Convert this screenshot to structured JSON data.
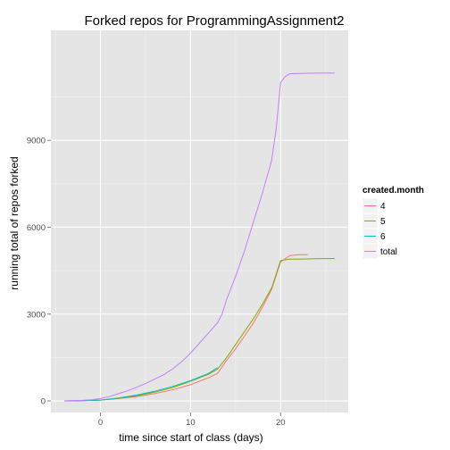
{
  "chart_data": {
    "type": "line",
    "title": "Forked repos for ProgrammingAssignment2",
    "xlabel": "time since start of class (days)",
    "ylabel": "running total of repos forked",
    "xlim": [
      -5.5,
      27.5
    ],
    "ylim": [
      -400,
      12800
    ],
    "x_ticks": [
      0,
      10,
      20
    ],
    "y_ticks": [
      0,
      3000,
      6000,
      9000
    ],
    "grid": true,
    "legend": {
      "title": "created.month",
      "placement": "right"
    },
    "series": [
      {
        "name": "4",
        "color": "#F8766D",
        "points": [
          [
            -4,
            0
          ],
          [
            -2,
            10
          ],
          [
            0,
            30
          ],
          [
            2,
            80
          ],
          [
            4,
            150
          ],
          [
            6,
            250
          ],
          [
            8,
            380
          ],
          [
            10,
            560
          ],
          [
            12,
            800
          ],
          [
            13,
            950
          ],
          [
            14,
            1400
          ],
          [
            15,
            1800
          ],
          [
            16,
            2250
          ],
          [
            17,
            2700
          ],
          [
            18,
            3250
          ],
          [
            19,
            3850
          ],
          [
            20,
            4800
          ],
          [
            21,
            5020
          ],
          [
            22,
            5050
          ],
          [
            23,
            5050
          ]
        ]
      },
      {
        "name": "5",
        "color": "#7CAE00",
        "points": [
          [
            -4,
            0
          ],
          [
            -2,
            10
          ],
          [
            0,
            30
          ],
          [
            2,
            90
          ],
          [
            4,
            180
          ],
          [
            6,
            300
          ],
          [
            8,
            460
          ],
          [
            10,
            680
          ],
          [
            12,
            920
          ],
          [
            13,
            1100
          ],
          [
            14,
            1500
          ],
          [
            15,
            1950
          ],
          [
            16,
            2400
          ],
          [
            17,
            2850
          ],
          [
            18,
            3350
          ],
          [
            19,
            3900
          ],
          [
            20,
            4850
          ],
          [
            21,
            4900
          ],
          [
            22,
            4900
          ],
          [
            24,
            4910
          ],
          [
            26,
            4920
          ]
        ]
      },
      {
        "name": "6",
        "color": "#00BFC4",
        "points": [
          [
            -4,
            0
          ],
          [
            -2,
            10
          ],
          [
            0,
            30
          ],
          [
            2,
            100
          ],
          [
            4,
            200
          ],
          [
            6,
            330
          ],
          [
            8,
            500
          ],
          [
            10,
            700
          ],
          [
            12,
            950
          ],
          [
            13,
            1150
          ]
        ]
      },
      {
        "name": "total",
        "color": "#C77CFF",
        "points": [
          [
            -4,
            0
          ],
          [
            -2,
            20
          ],
          [
            -1,
            40
          ],
          [
            0,
            80
          ],
          [
            1,
            150
          ],
          [
            2,
            250
          ],
          [
            3,
            350
          ],
          [
            4,
            470
          ],
          [
            5,
            600
          ],
          [
            6,
            750
          ],
          [
            7,
            900
          ],
          [
            8,
            1100
          ],
          [
            9,
            1350
          ],
          [
            10,
            1650
          ],
          [
            11,
            2000
          ],
          [
            12,
            2350
          ],
          [
            13,
            2700
          ],
          [
            13.5,
            3000
          ],
          [
            14,
            3500
          ],
          [
            15,
            4300
          ],
          [
            16,
            5200
          ],
          [
            17,
            6200
          ],
          [
            18,
            7200
          ],
          [
            19,
            8300
          ],
          [
            19.5,
            9400
          ],
          [
            20,
            11000
          ],
          [
            20.5,
            11200
          ],
          [
            21,
            11300
          ],
          [
            23,
            11320
          ],
          [
            26,
            11330
          ]
        ]
      }
    ]
  }
}
